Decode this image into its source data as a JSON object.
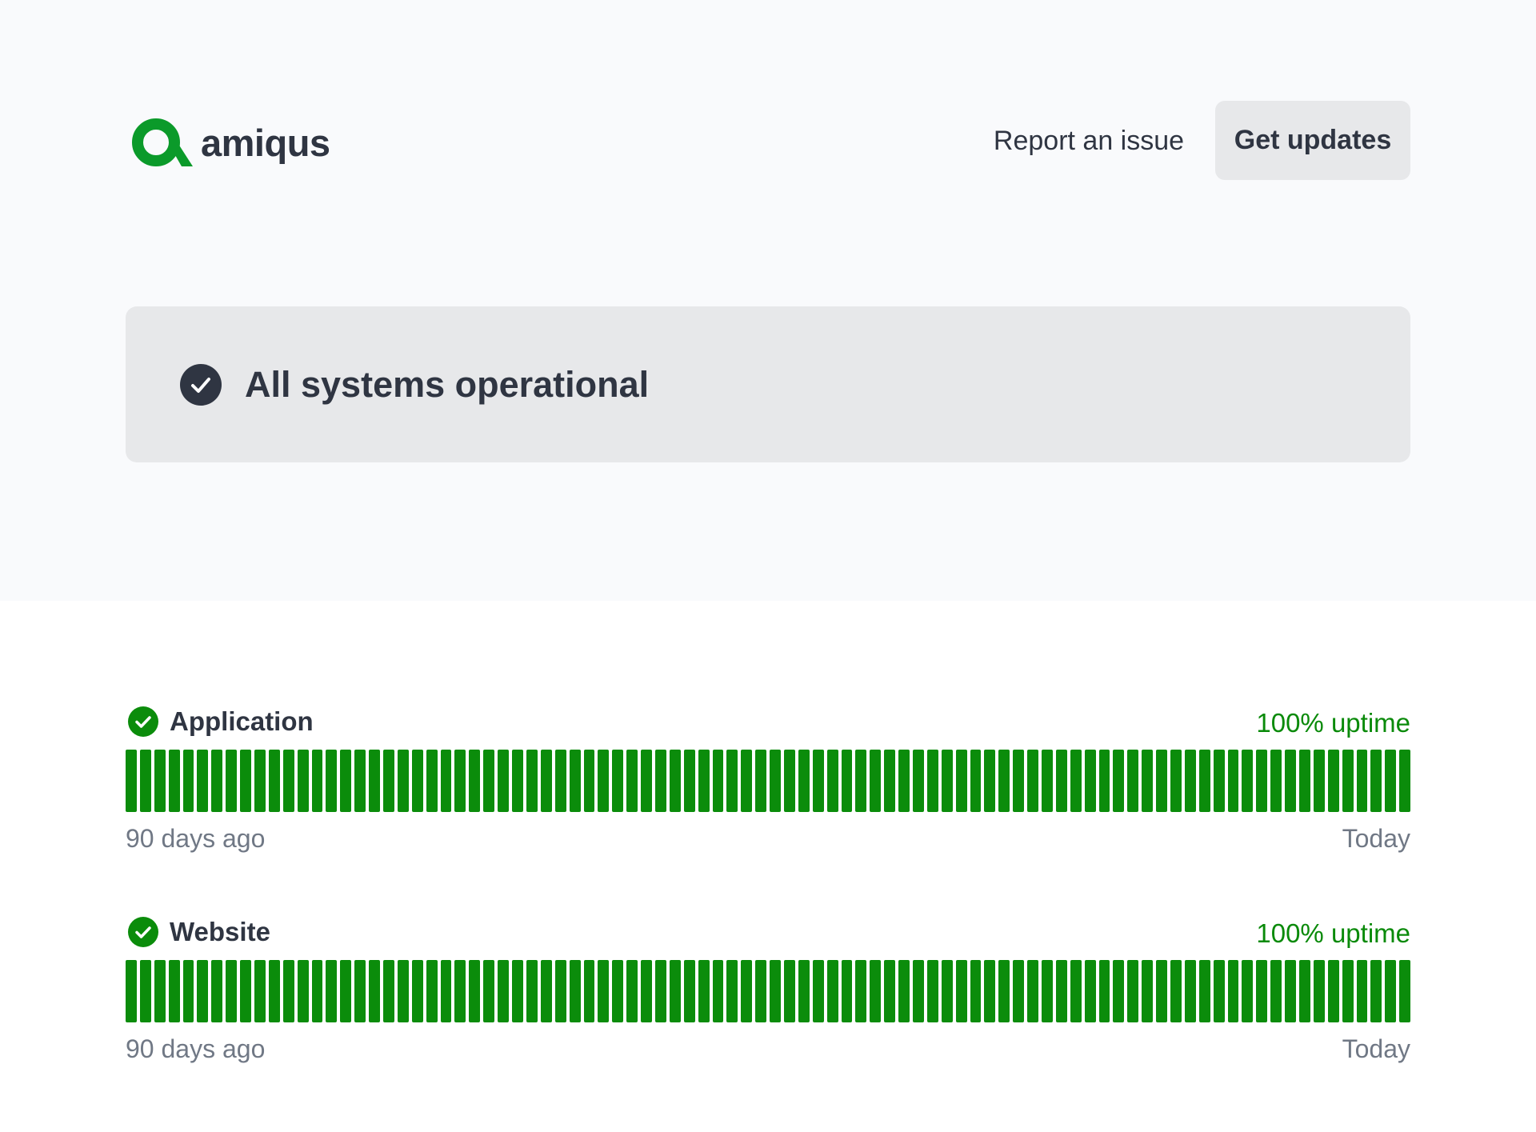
{
  "header": {
    "brand": "amiqus",
    "report_link": "Report an issue",
    "updates_button": "Get updates"
  },
  "status": {
    "title": "All systems operational",
    "icon": "check-circle-icon"
  },
  "colors": {
    "brand_green": "#0b9a2a",
    "uptime_green": "#0b8c0b",
    "uptime_text": "#0a8a0a",
    "text_dark": "#2f3542",
    "muted": "#707885"
  },
  "components": [
    {
      "name": "Application",
      "uptime": "100% uptime",
      "range_start": "90 days ago",
      "range_end": "Today",
      "days": 90,
      "operational_days": 90
    },
    {
      "name": "Website",
      "uptime": "100% uptime",
      "range_start": "90 days ago",
      "range_end": "Today",
      "days": 90,
      "operational_days": 90
    }
  ]
}
